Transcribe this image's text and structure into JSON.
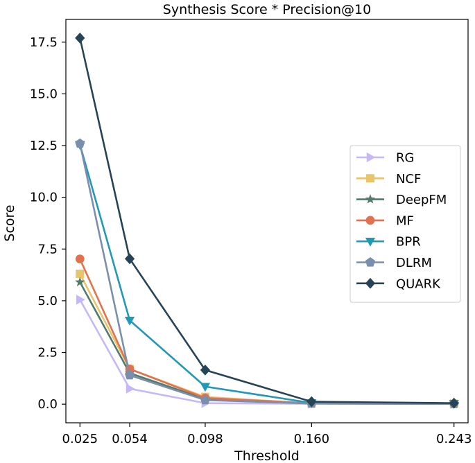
{
  "chart_data": {
    "type": "line",
    "title": "Synthesis Score * Precision@10",
    "xlabel": "Threshold",
    "ylabel": "Score",
    "x": [
      0.025,
      0.054,
      0.098,
      0.16,
      0.243
    ],
    "x_tick_labels": [
      "0.025",
      "0.054",
      "0.098",
      "0.160",
      "0.243"
    ],
    "y_ticks": [
      0.0,
      2.5,
      5.0,
      7.5,
      10.0,
      12.5,
      15.0,
      17.5
    ],
    "y_tick_labels": [
      "0.0",
      "2.5",
      "5.0",
      "7.5",
      "10.0",
      "12.5",
      "15.0",
      "17.5"
    ],
    "xlim": [
      0.0168,
      0.2512
    ],
    "ylim": [
      -0.9,
      18.6
    ],
    "grid": false,
    "legend_position": "center-right",
    "series": [
      {
        "name": "RG",
        "color": "#c6b7f6",
        "marker": "triangle-right",
        "values": [
          5.05,
          0.75,
          0.05,
          0.02,
          0.01
        ]
      },
      {
        "name": "NCF",
        "color": "#e8c46c",
        "marker": "square",
        "values": [
          6.3,
          1.7,
          0.35,
          0.04,
          0.02
        ]
      },
      {
        "name": "DeepFM",
        "color": "#527a6a",
        "marker": "star",
        "values": [
          5.9,
          1.5,
          0.25,
          0.03,
          0.02
        ]
      },
      {
        "name": "MF",
        "color": "#e2714f",
        "marker": "circle",
        "values": [
          7.02,
          1.7,
          0.3,
          0.04,
          0.02
        ]
      },
      {
        "name": "BPR",
        "color": "#2198b5",
        "marker": "triangle-down",
        "values": [
          12.55,
          4.05,
          0.85,
          0.06,
          0.03
        ]
      },
      {
        "name": "DLRM",
        "color": "#7a8fab",
        "marker": "pentagon",
        "values": [
          12.6,
          1.4,
          0.2,
          0.03,
          0.02
        ]
      },
      {
        "name": "QUARK",
        "color": "#274456",
        "marker": "diamond",
        "values": [
          17.7,
          7.03,
          1.65,
          0.12,
          0.05
        ]
      }
    ]
  }
}
